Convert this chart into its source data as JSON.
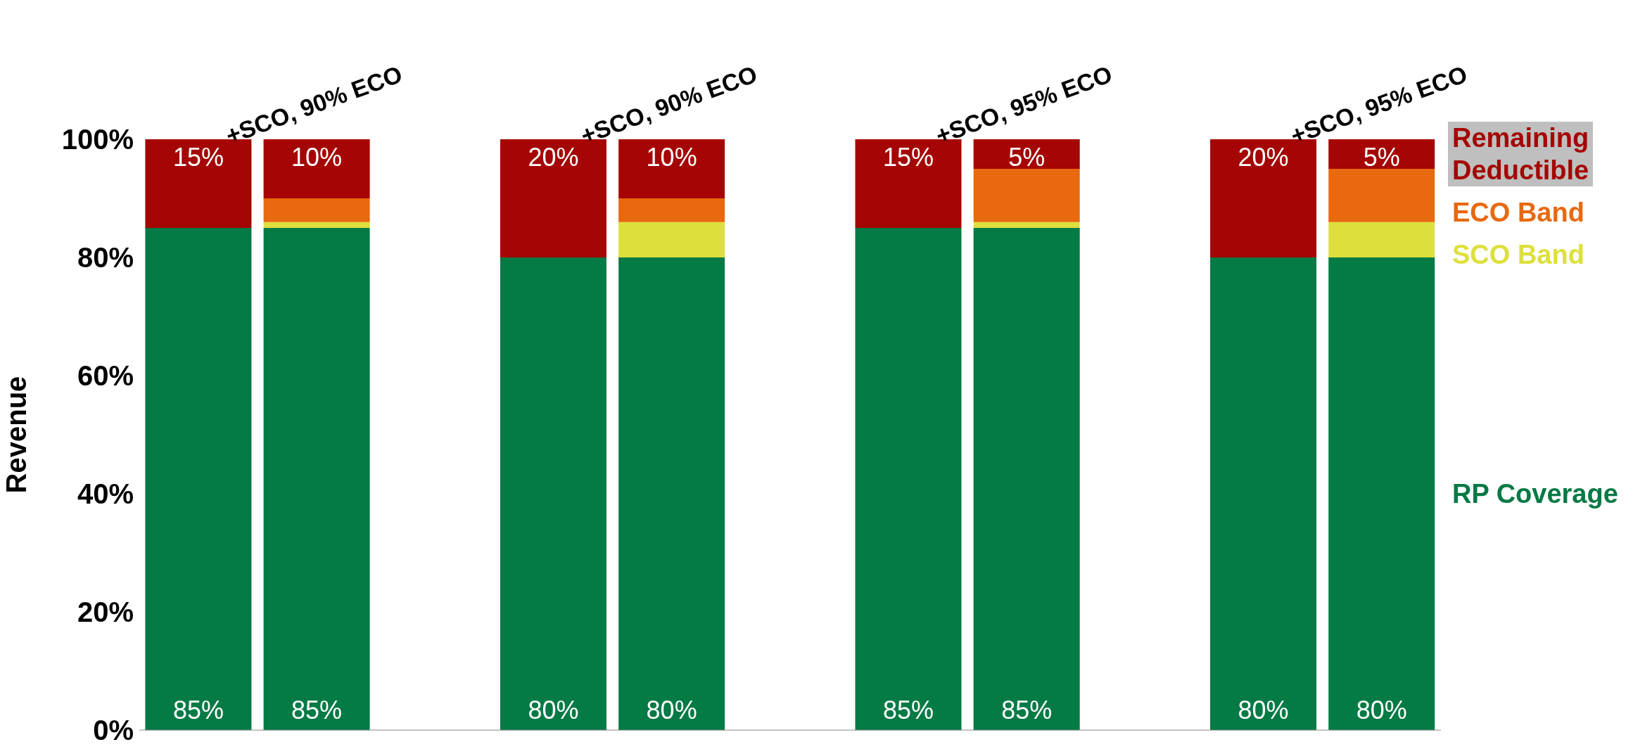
{
  "chart_data": {
    "type": "bar",
    "stacked": true,
    "ylabel": "Revenue",
    "categories": [
      null,
      "+SCO, 90% ECO",
      null,
      null,
      "+SCO, 90% ECO",
      null,
      null,
      "+SCO, 95% ECO",
      null,
      null,
      "+SCO, 95% ECO"
    ],
    "ylim": [
      0,
      100
    ],
    "yticks": [
      {
        "value": 0,
        "label": "0%"
      },
      {
        "value": 20,
        "label": "20%"
      },
      {
        "value": 40,
        "label": "40%"
      },
      {
        "value": 60,
        "label": "60%"
      },
      {
        "value": 80,
        "label": "80%"
      },
      {
        "value": 100,
        "label": "100%"
      }
    ],
    "legend": "right",
    "series": [
      {
        "name": "RP Coverage",
        "color": "#047a45",
        "values": [
          85,
          85,
          null,
          80,
          80,
          null,
          85,
          85,
          null,
          80,
          80
        ],
        "value_labels": [
          "85%",
          "85%",
          null,
          "80%",
          "80%",
          null,
          "85%",
          "85%",
          null,
          "80%",
          "80%"
        ]
      },
      {
        "name": "SCO Band",
        "color": "#dde03c",
        "values": [
          0,
          1,
          null,
          0,
          6,
          null,
          0,
          1,
          null,
          0,
          6
        ]
      },
      {
        "name": "ECO Band",
        "color": "#e8690f",
        "values": [
          0,
          4,
          null,
          0,
          4,
          null,
          0,
          9,
          null,
          0,
          9
        ]
      },
      {
        "name": "Remaining Deductible",
        "color": "#a50505",
        "values": [
          15,
          10,
          null,
          20,
          10,
          null,
          15,
          5,
          null,
          20,
          5
        ],
        "value_labels": [
          "15%",
          "10%",
          null,
          "20%",
          "10%",
          null,
          "15%",
          "5%",
          null,
          "20%",
          "5%"
        ]
      }
    ]
  }
}
